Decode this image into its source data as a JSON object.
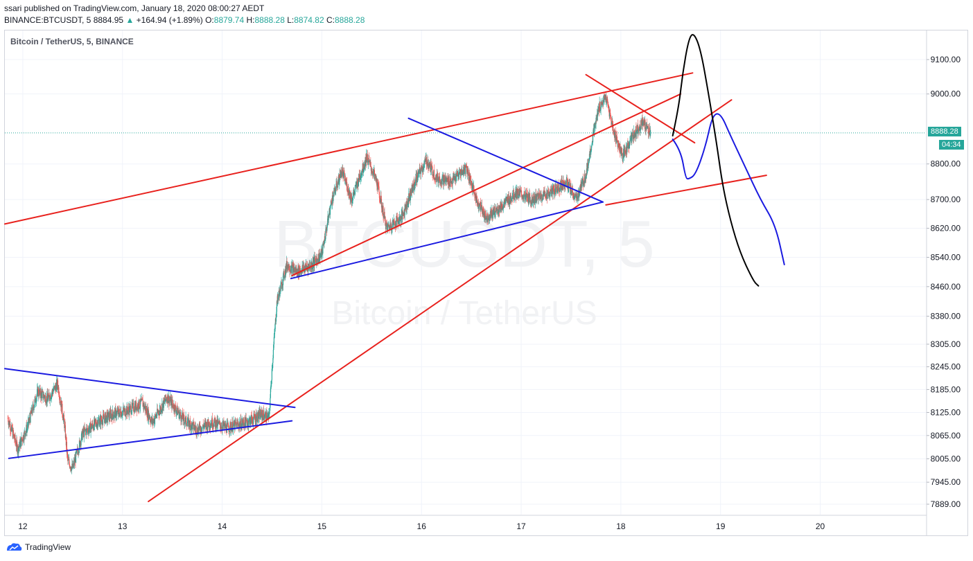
{
  "header": {
    "published_by": "ssari published on TradingView.com, January 18, 2020 08:00:27 AEDT",
    "symbol_line_prefix": "BINANCE:BTCUSDT, 5",
    "last_price": "8884.95",
    "change_arrow": "▲",
    "change": "+164.94 (+1.89%)",
    "o_label": "O:",
    "o_val": "8879.74",
    "h_label": "H:",
    "h_val": "8888.28",
    "l_label": "L:",
    "l_val": "8874.82",
    "c_label": "C:",
    "c_val": "8888.28"
  },
  "chart_title": "Bitcoin / TetherUS, 5, BINANCE",
  "watermark": {
    "line1": "BTCUSDT, 5",
    "line2": "Bitcoin / TetherUS"
  },
  "price_badge": {
    "price": "8888.28",
    "countdown": "04:34"
  },
  "footer": {
    "brand": "TradingView",
    "logo_icon": "tradingview-logo-icon"
  },
  "colors": {
    "up": "#26a69a",
    "down": "#ef5350",
    "red_line": "#e8211d",
    "blue_line": "#1a1ae0",
    "black_line": "#000000"
  },
  "chart_data": {
    "type": "candlestick",
    "title": "Bitcoin / TetherUS, 5, BINANCE",
    "x_ticks": [
      "12",
      "13",
      "14",
      "15",
      "16",
      "17",
      "18",
      "19",
      "20"
    ],
    "x_tick_days": [
      12,
      13,
      14,
      15,
      16,
      17,
      18,
      19,
      20
    ],
    "x_range_days": [
      11.82,
      21.06
    ],
    "y_ticks": [
      9100.0,
      9000.0,
      8800.0,
      8700.0,
      8620.0,
      8540.0,
      8460.0,
      8380.0,
      8305.0,
      8245.0,
      8185.0,
      8125.0,
      8065.0,
      8005.0,
      7945.0,
      7889.0
    ],
    "y_scale": "log",
    "last_price": 8888.28,
    "price_path": [
      [
        11.85,
        8110
      ],
      [
        11.95,
        8030
      ],
      [
        12.05,
        8090
      ],
      [
        12.15,
        8180
      ],
      [
        12.25,
        8160
      ],
      [
        12.35,
        8200
      ],
      [
        12.42,
        8090
      ],
      [
        12.45,
        8000
      ],
      [
        12.5,
        7980
      ],
      [
        12.6,
        8070
      ],
      [
        12.75,
        8100
      ],
      [
        12.9,
        8120
      ],
      [
        13.05,
        8130
      ],
      [
        13.2,
        8150
      ],
      [
        13.3,
        8100
      ],
      [
        13.45,
        8165
      ],
      [
        13.6,
        8110
      ],
      [
        13.75,
        8080
      ],
      [
        13.9,
        8100
      ],
      [
        14.05,
        8085
      ],
      [
        14.25,
        8100
      ],
      [
        14.4,
        8120
      ],
      [
        14.47,
        8110
      ],
      [
        14.5,
        8240
      ],
      [
        14.55,
        8420
      ],
      [
        14.65,
        8520
      ],
      [
        14.75,
        8500
      ],
      [
        14.9,
        8520
      ],
      [
        15.0,
        8550
      ],
      [
        15.1,
        8700
      ],
      [
        15.2,
        8780
      ],
      [
        15.3,
        8700
      ],
      [
        15.45,
        8820
      ],
      [
        15.55,
        8750
      ],
      [
        15.65,
        8620
      ],
      [
        15.8,
        8650
      ],
      [
        15.95,
        8760
      ],
      [
        16.05,
        8810
      ],
      [
        16.15,
        8760
      ],
      [
        16.3,
        8750
      ],
      [
        16.45,
        8790
      ],
      [
        16.55,
        8700
      ],
      [
        16.65,
        8650
      ],
      [
        16.8,
        8680
      ],
      [
        16.95,
        8720
      ],
      [
        17.1,
        8700
      ],
      [
        17.3,
        8720
      ],
      [
        17.45,
        8750
      ],
      [
        17.55,
        8700
      ],
      [
        17.65,
        8770
      ],
      [
        17.72,
        8880
      ],
      [
        17.78,
        8960
      ],
      [
        17.85,
        8990
      ],
      [
        17.93,
        8890
      ],
      [
        18.02,
        8820
      ],
      [
        18.12,
        8880
      ],
      [
        18.22,
        8920
      ],
      [
        18.3,
        8888
      ]
    ],
    "drawings": [
      {
        "color": "red",
        "points": [
          [
            11.82,
            8632
          ],
          [
            18.72,
            9061
          ]
        ]
      },
      {
        "color": "red",
        "points": [
          [
            13.26,
            7896
          ],
          [
            19.11,
            8983
          ]
        ]
      },
      {
        "color": "red",
        "points": [
          [
            14.7,
            8490
          ],
          [
            18.6,
            9000
          ]
        ]
      },
      {
        "color": "red",
        "points": [
          [
            17.85,
            8685
          ],
          [
            19.46,
            8768
          ]
        ]
      },
      {
        "color": "red",
        "points": [
          [
            17.65,
            9056
          ],
          [
            18.74,
            8860
          ]
        ]
      },
      {
        "color": "blue",
        "points": [
          [
            11.82,
            8240
          ],
          [
            14.73,
            8138
          ]
        ]
      },
      {
        "color": "blue",
        "points": [
          [
            11.86,
            8006
          ],
          [
            14.7,
            8103
          ]
        ]
      },
      {
        "color": "blue",
        "points": [
          [
            14.69,
            8482
          ],
          [
            17.82,
            8693
          ]
        ]
      },
      {
        "color": "blue",
        "points": [
          [
            15.87,
            8930
          ],
          [
            17.82,
            8693
          ]
        ]
      },
      {
        "color": "blue",
        "points": [
          [
            18.52,
            8870
          ],
          [
            18.6,
            8840
          ],
          [
            18.65,
            8760
          ],
          [
            18.68,
            8757
          ],
          [
            18.75,
            8770
          ],
          [
            18.85,
            8850
          ],
          [
            18.92,
            8940
          ],
          [
            19.0,
            8945
          ],
          [
            19.1,
            8880
          ],
          [
            19.25,
            8790
          ],
          [
            19.4,
            8700
          ],
          [
            19.55,
            8630
          ],
          [
            19.64,
            8520
          ]
        ]
      },
      {
        "color": "black",
        "points": [
          [
            18.52,
            8880
          ],
          [
            18.58,
            8960
          ],
          [
            18.62,
            9060
          ],
          [
            18.68,
            9160
          ],
          [
            18.73,
            9180
          ],
          [
            18.8,
            9130
          ],
          [
            18.88,
            9000
          ],
          [
            18.96,
            8860
          ],
          [
            19.02,
            8740
          ],
          [
            19.1,
            8640
          ],
          [
            19.2,
            8550
          ],
          [
            19.33,
            8475
          ],
          [
            19.38,
            8462
          ]
        ]
      }
    ]
  }
}
